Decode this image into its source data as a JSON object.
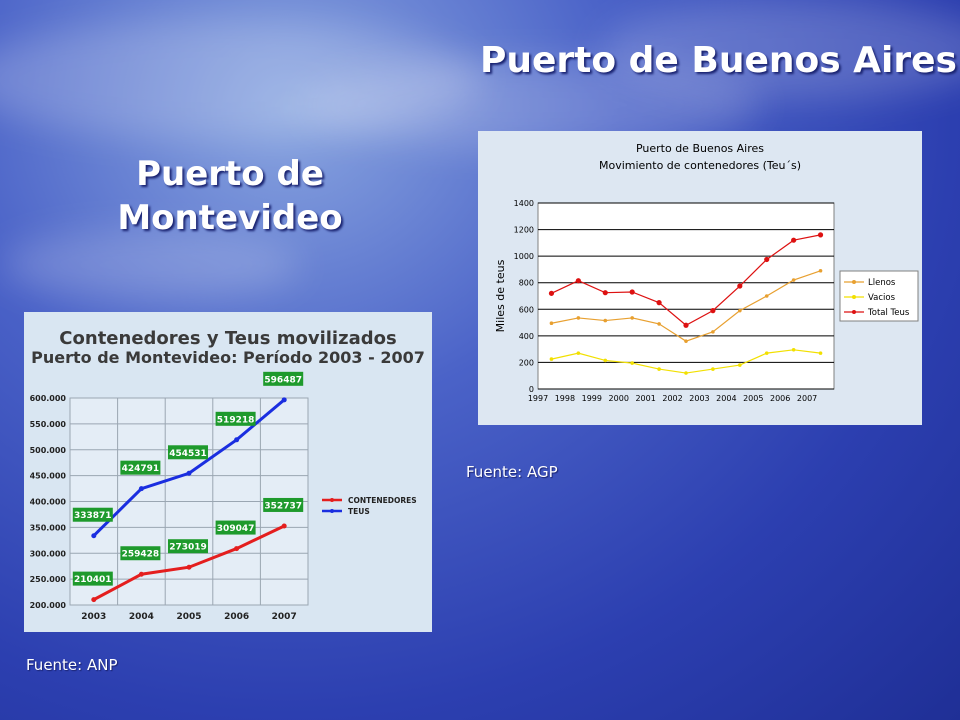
{
  "slide": {
    "title_ba": "Puerto de Buenos Aires",
    "title_mv": "Puerto de Montevideo",
    "source_agp": "Fuente: AGP",
    "source_anp": "Fuente: ANP"
  },
  "colors": {
    "llenos": "#e8a030",
    "vacios": "#f2e000",
    "total": "#dd1111",
    "contenedores": "#e41e1e",
    "teus": "#1a2ee0",
    "label_box": "#1e9a2c"
  },
  "chart_data": [
    {
      "type": "line",
      "title": "Puerto de Buenos Aires",
      "subtitle": "Movimiento de contenedores (Teu´s)",
      "xlabel": "",
      "ylabel": "Miles de teus",
      "x": [
        "1997",
        "1998",
        "1999",
        "2000",
        "2001",
        "2002",
        "2003",
        "2004",
        "2005",
        "2006",
        "2007"
      ],
      "ylim": [
        0,
        1400
      ],
      "yticks": [
        "0",
        "200",
        "400",
        "600",
        "800",
        "1000",
        "1200",
        "1400"
      ],
      "grid": true,
      "legend_position": "right",
      "series": [
        {
          "name": "Llenos",
          "values": [
            495,
            535,
            515,
            535,
            490,
            360,
            430,
            590,
            700,
            820,
            890
          ]
        },
        {
          "name": "Vacios",
          "values": [
            225,
            270,
            215,
            195,
            150,
            120,
            150,
            180,
            270,
            295,
            270
          ]
        },
        {
          "name": "Total Teus",
          "values": [
            720,
            815,
            725,
            730,
            650,
            480,
            590,
            775,
            975,
            1120,
            1160
          ]
        }
      ]
    },
    {
      "type": "line",
      "title": "Contenedores y Teus movilizados",
      "subtitle": "Puerto de Montevideo: Período 2003 - 2007",
      "xlabel": "",
      "ylabel": "",
      "x": [
        "2003",
        "2004",
        "2005",
        "2006",
        "2007"
      ],
      "ylim": [
        200000,
        600000
      ],
      "yticks": [
        "200.000",
        "250.000",
        "300.000",
        "350.000",
        "400.000",
        "450.000",
        "500.000",
        "550.000",
        "600.000"
      ],
      "grid": true,
      "legend_position": "right",
      "series": [
        {
          "name": "CONTENEDORES",
          "values": [
            210401,
            259428,
            273019,
            309047,
            352737
          ],
          "labels": [
            "210401",
            "259428",
            "273019",
            "309047",
            "352737"
          ]
        },
        {
          "name": "TEUS",
          "values": [
            333871,
            424791,
            454531,
            519218,
            596487
          ],
          "labels": [
            "333871",
            "424791",
            "454531",
            "519218",
            "596487"
          ]
        }
      ]
    }
  ]
}
